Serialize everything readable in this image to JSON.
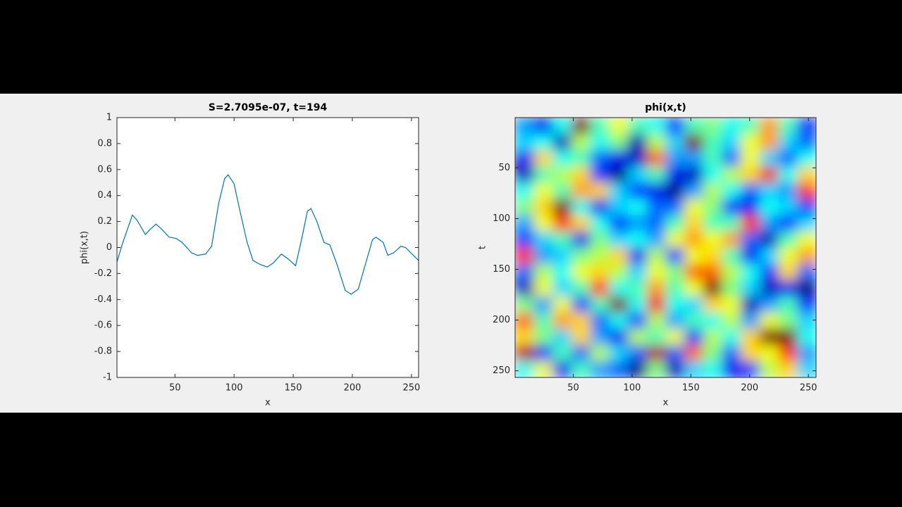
{
  "chart_data": [
    {
      "type": "line",
      "title": "S=2.7095e-07, t=194",
      "xlabel": "x",
      "ylabel": "phi(x,t)",
      "color": "#0072bd",
      "x": [
        1,
        6,
        14,
        18,
        25,
        29,
        34,
        39,
        45,
        51,
        56,
        64,
        69,
        76,
        81,
        87,
        92,
        95,
        100,
        105,
        111,
        116,
        122,
        128,
        133,
        140,
        146,
        152,
        157,
        162,
        165,
        170,
        176,
        181,
        187,
        194,
        199,
        205,
        211,
        217,
        220,
        226,
        230,
        235,
        241,
        245,
        256
      ],
      "values": [
        -0.11,
        0.04,
        0.25,
        0.21,
        0.1,
        0.14,
        0.18,
        0.14,
        0.08,
        0.07,
        0.04,
        -0.04,
        -0.06,
        -0.05,
        0.01,
        0.34,
        0.53,
        0.56,
        0.49,
        0.28,
        0.04,
        -0.1,
        -0.13,
        -0.15,
        -0.12,
        -0.05,
        -0.09,
        -0.14,
        0.06,
        0.28,
        0.3,
        0.2,
        0.04,
        0.02,
        -0.13,
        -0.33,
        -0.36,
        -0.32,
        -0.13,
        0.06,
        0.08,
        0.04,
        -0.06,
        -0.04,
        0.01,
        0.0,
        -0.1
      ],
      "xlim": [
        1,
        256
      ],
      "xticks": [
        50,
        100,
        150,
        200,
        250
      ],
      "ylim": [
        -1,
        1
      ],
      "yticks": [
        -1,
        -0.8,
        -0.6,
        -0.4,
        -0.2,
        0,
        0.2,
        0.4,
        0.6,
        0.8,
        1
      ]
    },
    {
      "type": "heatmap",
      "title": "phi(x,t)",
      "xlabel": "x",
      "ylabel": "t",
      "colormap": "jet",
      "y_reversed": true,
      "xlim": [
        0.5,
        256.5
      ],
      "xticks": [
        50,
        100,
        150,
        200,
        250
      ],
      "ylim": [
        0.5,
        256.5
      ],
      "yticks": [
        50,
        100,
        150,
        200,
        250
      ],
      "values": [
        [
          -0.4,
          -0.7,
          -0.2,
          0.9,
          -0.1,
          0.2,
          -0.1,
          -0.2,
          -0.6,
          -0.1,
          0,
          -0.2,
          -0.1,
          0.4,
          -0.1,
          -0.6
        ],
        [
          -0.3,
          -0.2,
          -0.8,
          0.1,
          -0.2,
          0,
          -0.8,
          0.1,
          -0.3,
          0.9,
          -0.1,
          -0.3,
          0.2,
          0.4,
          -0.3,
          -0.5
        ],
        [
          -0.7,
          0.3,
          -0.2,
          -0.1,
          -0.5,
          -0.7,
          -0.8,
          0.5,
          -0.4,
          -0.4,
          -0.1,
          -0.5,
          0.2,
          -0.3,
          -0.5,
          -0.2
        ],
        [
          -0.8,
          -0.1,
          0.1,
          0.3,
          -0.6,
          -0.9,
          -0.3,
          -0.1,
          -0.7,
          -0.8,
          -0.2,
          0.1,
          0.3,
          0.7,
          -0.2,
          0.3
        ],
        [
          -0.2,
          0.2,
          -0.1,
          0.4,
          0.3,
          -0.3,
          -0.6,
          -0.7,
          -0.9,
          -0.4,
          0.1,
          -0.2,
          -0.5,
          -0.3,
          -0.4,
          0.6
        ],
        [
          0,
          0.3,
          0.9,
          -0.2,
          -0.7,
          -0.3,
          -0.2,
          -0.5,
          -0.5,
          0.2,
          0,
          -0.6,
          -0.7,
          -0.2,
          -0.3,
          -0.6
        ],
        [
          -0.4,
          0.2,
          0.6,
          0.3,
          -0.2,
          -0.6,
          -0.4,
          -0.5,
          -0.1,
          0.3,
          -0.1,
          -0.1,
          0.6,
          -0.4,
          -0.6,
          -0.3
        ],
        [
          -0.6,
          -0.3,
          -0.1,
          -0.7,
          0,
          -0.3,
          -0.2,
          -0.4,
          0.2,
          0.4,
          0.2,
          0.4,
          -0.5,
          -0.8,
          -0.1,
          0.2
        ],
        [
          0.6,
          -0.4,
          -0.3,
          0,
          0.1,
          0.3,
          -0.7,
          0.1,
          -0.6,
          0.2,
          0.3,
          -0.1,
          -0.7,
          -0.3,
          0.2,
          0.4
        ],
        [
          -0.5,
          0.1,
          -0.2,
          0.2,
          0.3,
          0.1,
          -0.3,
          0.2,
          0,
          0.5,
          0.5,
          0.1,
          -0.2,
          -0.6,
          0.3,
          -0.5
        ],
        [
          -0.8,
          0.2,
          -0.3,
          -0.1,
          0.6,
          -0.2,
          -0.1,
          0.4,
          -0.1,
          0.2,
          0.9,
          0,
          -0.3,
          -0.8,
          -0.7,
          -0.9
        ],
        [
          0,
          -0.4,
          0.2,
          -0.6,
          -0.1,
          0.9,
          -0.2,
          0.7,
          -0.2,
          -0.3,
          0.3,
          0.2,
          -0.8,
          -0.4,
          -0.1,
          -0.6
        ],
        [
          0.5,
          -0.1,
          0.4,
          0.3,
          -0.5,
          -0.2,
          -0.6,
          0.1,
          -0.4,
          -0.1,
          -0.2,
          0.1,
          -0.4,
          0.2,
          0,
          -0.3
        ],
        [
          0.3,
          0,
          -0.3,
          0.3,
          -0.4,
          -0.7,
          0.1,
          -0.1,
          0.2,
          -0.6,
          0.1,
          -0.2,
          0.3,
          0.9,
          0.9,
          -0.2
        ],
        [
          0.8,
          -0.6,
          -0.1,
          -0.5,
          0.1,
          -0.3,
          -0.5,
          0.8,
          -0.5,
          0.5,
          0,
          -0.5,
          0.3,
          0.2,
          0.6,
          -0.4
        ],
        [
          -0.2,
          0.2,
          -0.7,
          -0.1,
          -0.4,
          -0.5,
          -0.9,
          0,
          -0.8,
          -0.3,
          -0.2,
          -0.7,
          -0.6,
          0.1,
          0.3,
          -0.3
        ]
      ]
    }
  ]
}
